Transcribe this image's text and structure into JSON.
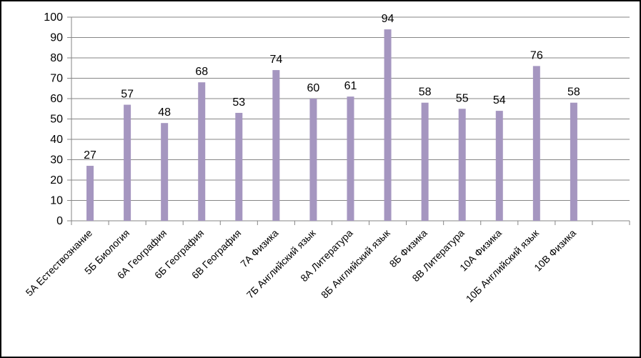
{
  "chart_data": {
    "type": "bar",
    "title": "",
    "xlabel": "",
    "ylabel": "",
    "ylim": [
      0,
      100
    ],
    "ytick_step": 10,
    "grid": true,
    "legend": "none",
    "bar_color": "#a596c0",
    "categories": [
      "5А Естествознание",
      "5Б Биология",
      "6А География",
      "6Б География",
      "6В География",
      "7А Физика",
      "7Б Английский язык",
      "8А Литература",
      "8Б Английский язык",
      "8Б Физика",
      "8В Литература",
      "10А Физика",
      "10Б Английский язык",
      "10В Физика",
      ""
    ],
    "values": [
      27,
      57,
      48,
      68,
      53,
      74,
      60,
      61,
      94,
      58,
      55,
      54,
      76,
      58,
      null
    ]
  }
}
